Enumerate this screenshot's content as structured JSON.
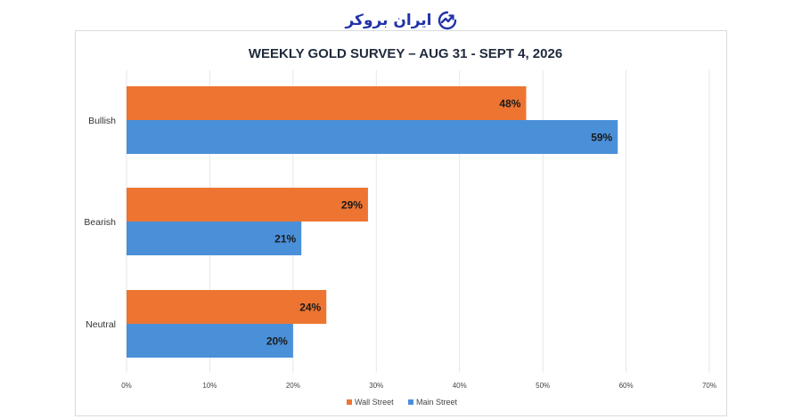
{
  "brand": {
    "name": "ایران بروکر",
    "accent": "#2233a8"
  },
  "chart_data": {
    "type": "bar",
    "orientation": "horizontal",
    "title": "WEEKLY GOLD SURVEY – AUG 31 - SEPT 4, 2026",
    "categories": [
      "Bullish",
      "Bearish",
      "Neutral"
    ],
    "series": [
      {
        "name": "Wall Street",
        "color": "#ed7531",
        "values": [
          48,
          29,
          24
        ]
      },
      {
        "name": "Main Street",
        "color": "#4a90d9",
        "values": [
          59,
          21,
          20
        ]
      }
    ],
    "value_suffix": "%",
    "xlim": [
      0,
      70
    ],
    "xticks": [
      0,
      10,
      20,
      30,
      40,
      50,
      60,
      70
    ],
    "tick_labels": [
      "0%",
      "10%",
      "20%",
      "30%",
      "40%",
      "50%",
      "60%",
      "70%"
    ],
    "grid": true,
    "legend_position": "bottom"
  }
}
